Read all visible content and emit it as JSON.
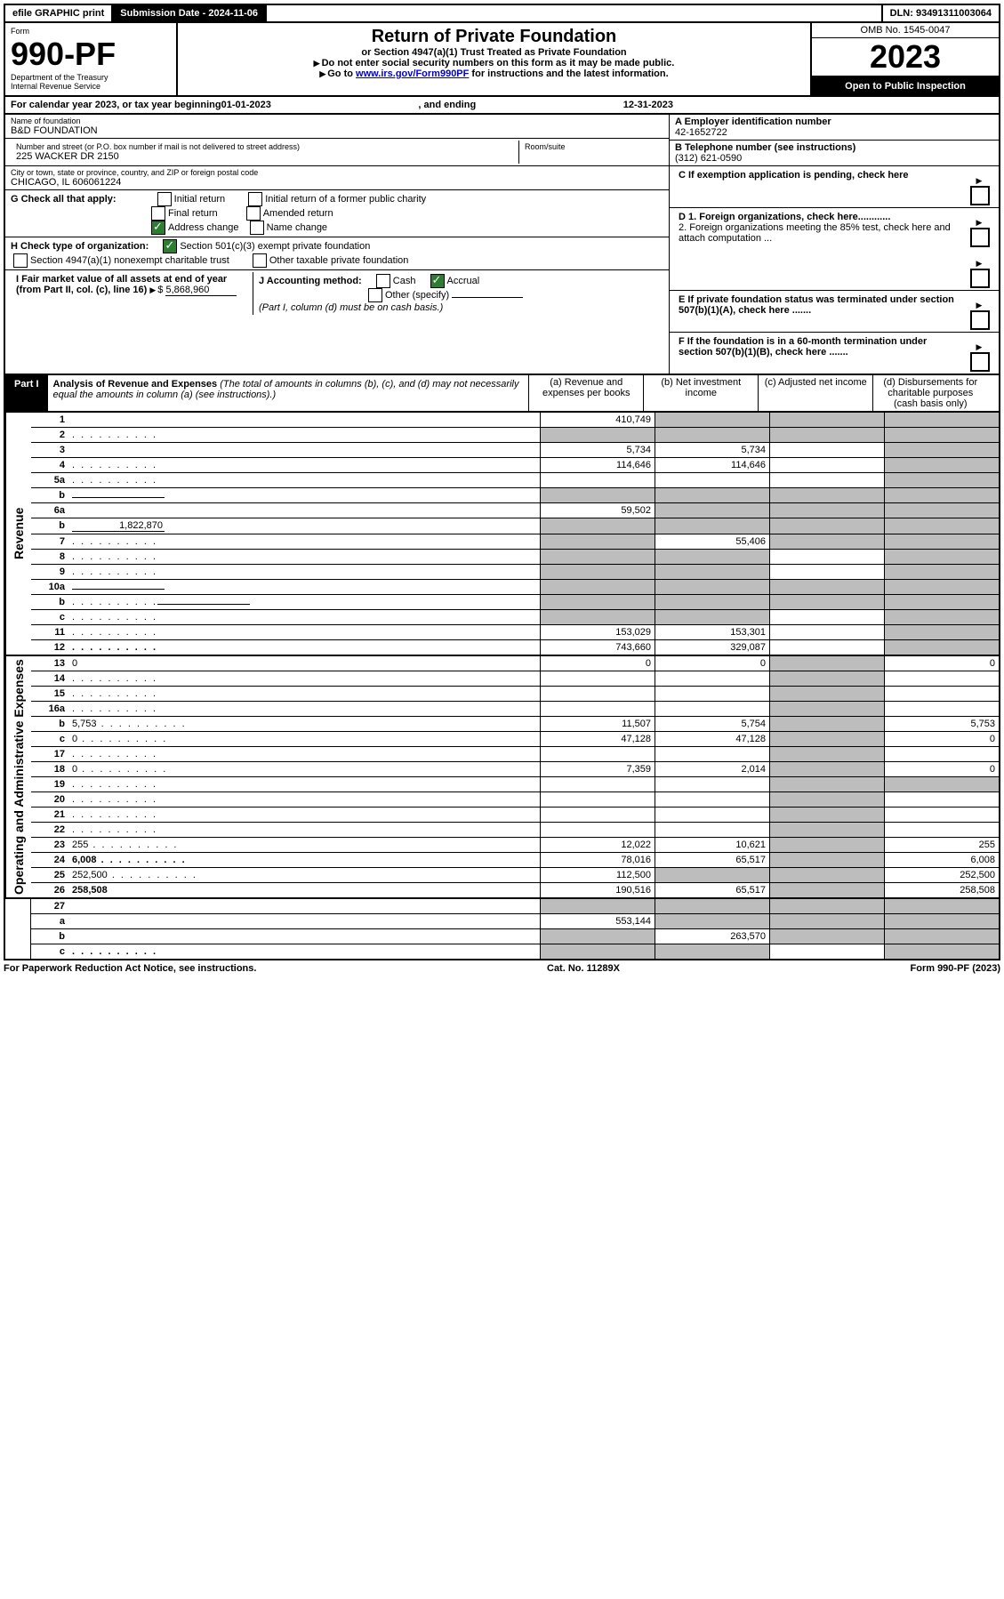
{
  "topbar": {
    "efile": "efile GRAPHIC print",
    "subdate_label": "Submission Date - ",
    "subdate": "2024-11-06",
    "dln_label": "DLN: ",
    "dln": "93491311003064"
  },
  "formhead": {
    "form_label": "Form",
    "form_no": "990-PF",
    "dept": "Department of the Treasury",
    "irs": "Internal Revenue Service",
    "title": "Return of Private Foundation",
    "subtitle": "or Section 4947(a)(1) Trust Treated as Private Foundation",
    "warn": "Do not enter social security numbers on this form as it may be made public.",
    "goto_pre": "Go to ",
    "goto_link": "www.irs.gov/Form990PF",
    "goto_post": " for instructions and the latest information.",
    "omb": "OMB No. 1545-0047",
    "year": "2023",
    "open": "Open to Public Inspection"
  },
  "calendar": {
    "pre": "For calendar year 2023, or tax year beginning ",
    "begin": "01-01-2023",
    "mid": ", and ending ",
    "end": "12-31-2023"
  },
  "info": {
    "name_label": "Name of foundation",
    "name": "B&D FOUNDATION",
    "addr_label": "Number and street (or P.O. box number if mail is not delivered to street address)",
    "addr": "225 WACKER DR 2150",
    "room_label": "Room/suite",
    "city_label": "City or town, state or province, country, and ZIP or foreign postal code",
    "city": "CHICAGO, IL  606061224",
    "a_label": "A Employer identification number",
    "a_val": "42-1652722",
    "b_label": "B Telephone number (see instructions)",
    "b_val": "(312) 621-0590",
    "c_label": "C If exemption application is pending, check here",
    "d1": "D 1. Foreign organizations, check here............",
    "d2": "2. Foreign organizations meeting the 85% test, check here and attach computation ...",
    "e_label": "E  If private foundation status was terminated under section 507(b)(1)(A), check here .......",
    "f_label": "F  If the foundation is in a 60-month termination under section 507(b)(1)(B), check here .......",
    "g_label": "G Check all that apply:",
    "g_opts": [
      "Initial return",
      "Initial return of a former public charity",
      "Final return",
      "Amended return",
      "Address change",
      "Name change"
    ],
    "h_label": "H Check type of organization:",
    "h_opts": [
      "Section 501(c)(3) exempt private foundation",
      "Section 4947(a)(1) nonexempt charitable trust",
      "Other taxable private foundation"
    ],
    "i_label": "I Fair market value of all assets at end of year (from Part II, col. (c), line 16)",
    "i_val": "5,868,960",
    "j_label": "J Accounting method:",
    "j_opts": [
      "Cash",
      "Accrual",
      "Other (specify)"
    ],
    "j_note": "(Part I, column (d) must be on cash basis.)"
  },
  "part1": {
    "label": "Part I",
    "title": "Analysis of Revenue and Expenses",
    "title_note": " (The total of amounts in columns (b), (c), and (d) may not necessarily equal the amounts in column (a) (see instructions).)",
    "cols": {
      "a": "(a)   Revenue and expenses per books",
      "b": "(b)   Net investment income",
      "c": "(c)   Adjusted net income",
      "d": "(d)  Disbursements for charitable purposes (cash basis only)"
    }
  },
  "sections": {
    "revenue": "Revenue",
    "expenses": "Operating and Administrative Expenses"
  },
  "rows": [
    {
      "n": "1",
      "d": "",
      "a": "410,749",
      "b": "",
      "c": "",
      "gb": true,
      "gc": true,
      "gd": true
    },
    {
      "n": "2",
      "d": "",
      "a": "",
      "b": "",
      "c": "",
      "ga": true,
      "gb": true,
      "gc": true,
      "gd": true,
      "dots": true
    },
    {
      "n": "3",
      "d": "",
      "a": "5,734",
      "b": "5,734",
      "c": "",
      "gd": true
    },
    {
      "n": "4",
      "d": "",
      "a": "114,646",
      "b": "114,646",
      "c": "",
      "gd": true,
      "dots": true
    },
    {
      "n": "5a",
      "d": "",
      "a": "",
      "b": "",
      "c": "",
      "gd": true,
      "dots": true
    },
    {
      "n": "b",
      "d": "",
      "a": "",
      "b": "",
      "c": "",
      "ga": true,
      "gb": true,
      "gc": true,
      "gd": true,
      "sub": true
    },
    {
      "n": "6a",
      "d": "",
      "a": "59,502",
      "b": "",
      "c": "",
      "gb": true,
      "gc": true,
      "gd": true
    },
    {
      "n": "b",
      "d": "",
      "a": "",
      "b": "",
      "c": "",
      "ga": true,
      "gb": true,
      "gc": true,
      "gd": true,
      "sub": true,
      "subval": "1,822,870"
    },
    {
      "n": "7",
      "d": "",
      "a": "",
      "b": "55,406",
      "c": "",
      "ga": true,
      "gc": true,
      "gd": true,
      "dots": true
    },
    {
      "n": "8",
      "d": "",
      "a": "",
      "b": "",
      "c": "",
      "ga": true,
      "gb": true,
      "gd": true,
      "dots": true
    },
    {
      "n": "9",
      "d": "",
      "a": "",
      "b": "",
      "c": "",
      "ga": true,
      "gb": true,
      "gd": true,
      "dots": true
    },
    {
      "n": "10a",
      "d": "",
      "a": "",
      "b": "",
      "c": "",
      "ga": true,
      "gb": true,
      "gc": true,
      "gd": true,
      "sub": true
    },
    {
      "n": "b",
      "d": "",
      "a": "",
      "b": "",
      "c": "",
      "ga": true,
      "gb": true,
      "gc": true,
      "gd": true,
      "sub": true,
      "dots": true
    },
    {
      "n": "c",
      "d": "",
      "a": "",
      "b": "",
      "c": "",
      "ga": true,
      "gb": true,
      "gd": true,
      "dots": true
    },
    {
      "n": "11",
      "d": "",
      "a": "153,029",
      "b": "153,301",
      "c": "",
      "gd": true,
      "dots": true
    },
    {
      "n": "12",
      "d": "",
      "a": "743,660",
      "b": "329,087",
      "c": "",
      "gd": true,
      "bold": true,
      "dots": true
    }
  ],
  "exp_rows": [
    {
      "n": "13",
      "d": "0",
      "a": "0",
      "b": "0",
      "c": "",
      "gc": true
    },
    {
      "n": "14",
      "d": "",
      "a": "",
      "b": "",
      "c": "",
      "gc": true,
      "dots": true
    },
    {
      "n": "15",
      "d": "",
      "a": "",
      "b": "",
      "c": "",
      "gc": true,
      "dots": true
    },
    {
      "n": "16a",
      "d": "",
      "a": "",
      "b": "",
      "c": "",
      "gc": true,
      "dots": true
    },
    {
      "n": "b",
      "d": "5,753",
      "a": "11,507",
      "b": "5,754",
      "c": "",
      "gc": true,
      "dots": true
    },
    {
      "n": "c",
      "d": "0",
      "a": "47,128",
      "b": "47,128",
      "c": "",
      "gc": true,
      "dots": true
    },
    {
      "n": "17",
      "d": "",
      "a": "",
      "b": "",
      "c": "",
      "gc": true,
      "dots": true
    },
    {
      "n": "18",
      "d": "0",
      "a": "7,359",
      "b": "2,014",
      "c": "",
      "gc": true,
      "dots": true
    },
    {
      "n": "19",
      "d": "",
      "a": "",
      "b": "",
      "c": "",
      "gc": true,
      "gd": true,
      "dots": true
    },
    {
      "n": "20",
      "d": "",
      "a": "",
      "b": "",
      "c": "",
      "gc": true,
      "dots": true
    },
    {
      "n": "21",
      "d": "",
      "a": "",
      "b": "",
      "c": "",
      "gc": true,
      "dots": true
    },
    {
      "n": "22",
      "d": "",
      "a": "",
      "b": "",
      "c": "",
      "gc": true,
      "dots": true
    },
    {
      "n": "23",
      "d": "255",
      "a": "12,022",
      "b": "10,621",
      "c": "",
      "gc": true,
      "dots": true
    },
    {
      "n": "24",
      "d": "6,008",
      "a": "78,016",
      "b": "65,517",
      "c": "",
      "gc": true,
      "bold": true,
      "dots": true
    },
    {
      "n": "25",
      "d": "252,500",
      "a": "112,500",
      "b": "",
      "c": "",
      "gb": true,
      "gc": true,
      "dots": true
    },
    {
      "n": "26",
      "d": "258,508",
      "a": "190,516",
      "b": "65,517",
      "c": "",
      "gc": true,
      "bold": true
    }
  ],
  "net_rows": [
    {
      "n": "27",
      "d": "",
      "a": "",
      "b": "",
      "c": "",
      "ga": true,
      "gb": true,
      "gc": true,
      "gd": true
    },
    {
      "n": "a",
      "d": "",
      "a": "553,144",
      "b": "",
      "c": "",
      "gb": true,
      "gc": true,
      "gd": true,
      "bold": true
    },
    {
      "n": "b",
      "d": "",
      "a": "",
      "b": "263,570",
      "c": "",
      "ga": true,
      "gc": true,
      "gd": true,
      "bold": true
    },
    {
      "n": "c",
      "d": "",
      "a": "",
      "b": "",
      "c": "",
      "ga": true,
      "gb": true,
      "gd": true,
      "bold": true,
      "dots": true
    }
  ],
  "footer": {
    "left": "For Paperwork Reduction Act Notice, see instructions.",
    "mid": "Cat. No. 11289X",
    "right": "Form 990-PF (2023)"
  }
}
